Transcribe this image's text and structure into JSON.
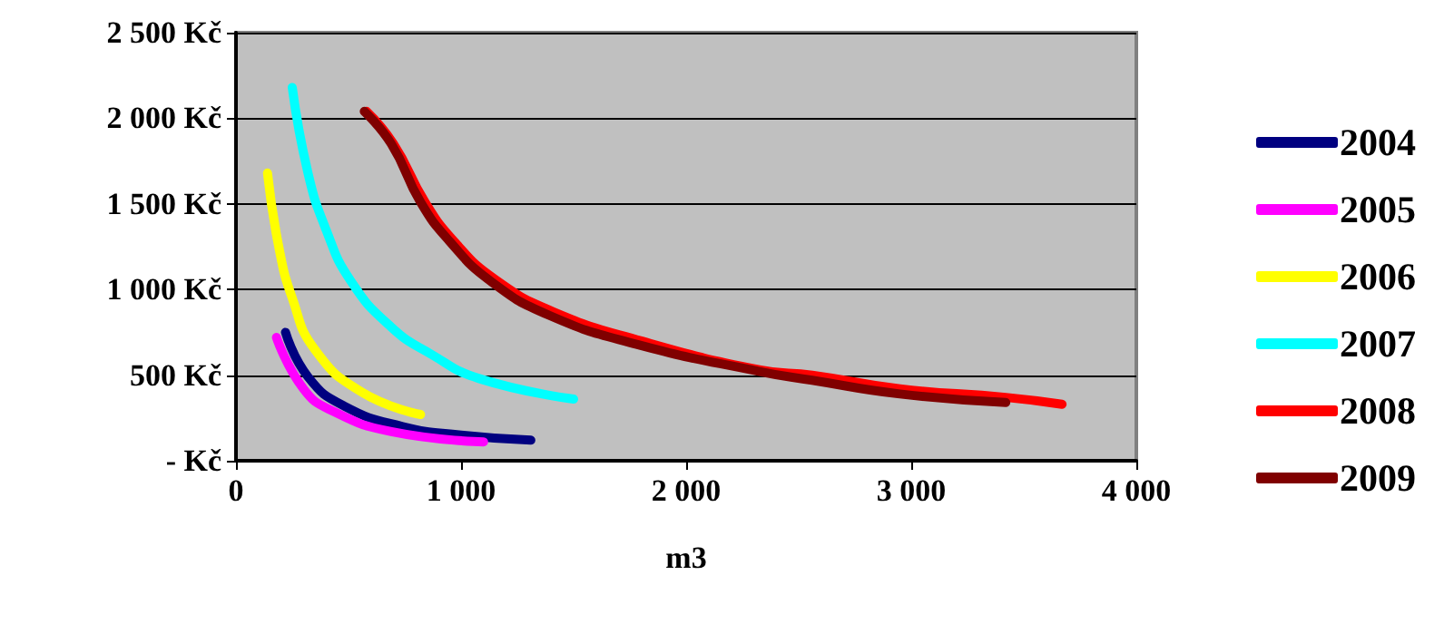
{
  "chart_data": {
    "type": "line",
    "xlabel": "m3",
    "xlim": [
      0,
      4000
    ],
    "xticks": [
      0,
      {
        "value": 1000,
        "label": "1 000"
      },
      {
        "value": 2000,
        "label": "2 000"
      },
      {
        "value": 3000,
        "label": "3 000"
      },
      {
        "value": 4000,
        "label": "4 000"
      }
    ],
    "ylim": [
      0,
      2500
    ],
    "yticks": [
      {
        "value": 0,
        "label": "- Kč"
      },
      {
        "value": 500,
        "label": "500 Kč"
      },
      {
        "value": 1000,
        "label": "1 000 Kč"
      },
      {
        "value": 1500,
        "label": "1 500 Kč"
      },
      {
        "value": 2000,
        "label": "2 000 Kč"
      },
      {
        "value": 2500,
        "label": "2 500 Kč"
      }
    ],
    "grid": "y",
    "legend": "right",
    "marker": "none",
    "line_style": "solid",
    "series": [
      {
        "name": "2004",
        "color": "#000080",
        "x": [
          220,
          320,
          480,
          740,
          1000,
          1310
        ],
        "values": [
          750,
          490,
          320,
          200,
          150,
          120
        ]
      },
      {
        "name": "2005",
        "color": "#ff00ff",
        "x": [
          180,
          300,
          430,
          690,
          1100
        ],
        "values": [
          720,
          420,
          290,
          170,
          110
        ]
      },
      {
        "name": "2006",
        "color": "#ffff00",
        "x": [
          140,
          190,
          250,
          350,
          560,
          820
        ],
        "values": [
          1680,
          1250,
          950,
          650,
          400,
          270
        ]
      },
      {
        "name": "2007",
        "color": "#00ffff",
        "x": [
          250,
          320,
          400,
          510,
          690,
          870,
          1080,
          1500
        ],
        "values": [
          2180,
          1680,
          1350,
          1050,
          780,
          620,
          480,
          360
        ]
      },
      {
        "name": "2008",
        "color": "#ff0000",
        "x": [
          580,
          700,
          840,
          970,
          1150,
          1410,
          1800,
          2330,
          2560,
          2950,
          3420,
          3670
        ],
        "values": [
          2040,
          1850,
          1510,
          1280,
          1060,
          870,
          700,
          530,
          500,
          420,
          370,
          330
        ]
      },
      {
        "name": "2009",
        "color": "#800000",
        "x": [
          570,
          690,
          820,
          950,
          1130,
          1390,
          1780,
          2330,
          2560,
          2950,
          3420
        ],
        "values": [
          2040,
          1850,
          1510,
          1280,
          1050,
          850,
          680,
          520,
          470,
          390,
          340
        ]
      }
    ]
  }
}
